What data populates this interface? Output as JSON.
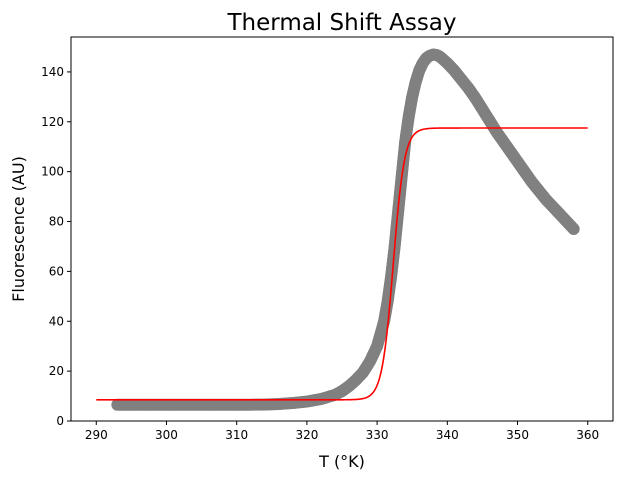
{
  "chart_data": {
    "type": "scatter",
    "title": "Thermal Shift Assay",
    "xlabel": "T (°K)",
    "ylabel": "Fluorescence (AU)",
    "xlim": [
      286.4,
      363.6
    ],
    "ylim": [
      0,
      154
    ],
    "xticks": [
      290,
      300,
      310,
      320,
      330,
      340,
      350,
      360
    ],
    "yticks": [
      0,
      20,
      40,
      60,
      80,
      100,
      120,
      140
    ],
    "grid": false,
    "legend": "none",
    "series": [
      {
        "kind": "scatter",
        "color": "#808080",
        "points": [
          [
            293,
            6.5
          ],
          [
            296,
            6.5
          ],
          [
            299,
            6.5
          ],
          [
            302,
            6.5
          ],
          [
            305,
            6.5
          ],
          [
            308,
            6.5
          ],
          [
            311,
            6.5
          ],
          [
            314,
            6.6
          ],
          [
            316,
            6.8
          ],
          [
            318,
            7.2
          ],
          [
            320,
            7.8
          ],
          [
            322,
            8.8
          ],
          [
            324,
            10.5
          ],
          [
            325,
            12
          ],
          [
            326,
            14
          ],
          [
            327,
            16.5
          ],
          [
            328,
            19.5
          ],
          [
            329,
            24
          ],
          [
            330,
            30
          ],
          [
            331,
            40
          ],
          [
            331.5,
            48
          ],
          [
            332,
            58
          ],
          [
            332.5,
            70
          ],
          [
            333,
            84
          ],
          [
            333.5,
            98
          ],
          [
            334,
            112
          ],
          [
            334.5,
            122
          ],
          [
            335,
            130
          ],
          [
            335.5,
            136
          ],
          [
            336,
            140.5
          ],
          [
            336.5,
            143.5
          ],
          [
            337,
            145.5
          ],
          [
            337.5,
            146.5
          ],
          [
            338,
            147
          ],
          [
            338.5,
            146.8
          ],
          [
            339,
            146
          ],
          [
            340,
            143.5
          ],
          [
            341,
            140.5
          ],
          [
            342,
            137
          ],
          [
            343,
            133.5
          ],
          [
            344,
            129.5
          ],
          [
            345,
            125
          ],
          [
            346,
            120.5
          ],
          [
            347,
            116
          ],
          [
            348,
            112
          ],
          [
            349,
            108
          ],
          [
            350,
            104
          ],
          [
            351,
            100
          ],
          [
            352,
            96
          ],
          [
            353,
            92.5
          ],
          [
            354,
            89
          ],
          [
            355,
            86
          ],
          [
            356,
            83
          ],
          [
            357,
            80
          ],
          [
            358,
            77
          ]
        ]
      },
      {
        "kind": "line",
        "color": "#ff0000",
        "fit": {
          "low": 8.5,
          "high": 117.5,
          "tm": 332.3,
          "slope": 0.8
        },
        "x_range": [
          290,
          360
        ]
      }
    ]
  }
}
